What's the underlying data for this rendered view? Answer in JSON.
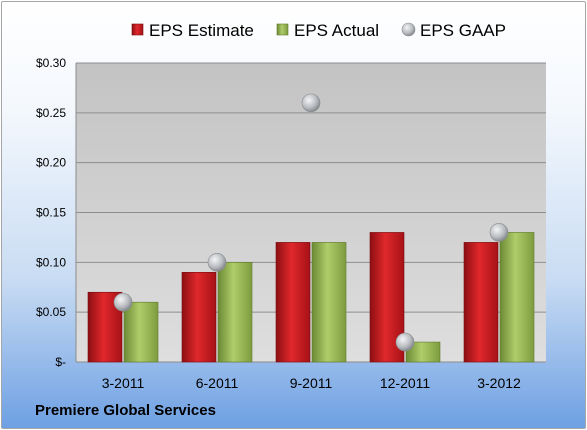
{
  "chart_data": {
    "type": "bar",
    "categories": [
      "3-2011",
      "6-2011",
      "9-2011",
      "12-2011",
      "3-2012"
    ],
    "series": [
      {
        "name": "EPS Estimate",
        "values": [
          0.07,
          0.09,
          0.12,
          0.13,
          0.12
        ],
        "color": "#c0171b",
        "mark": "bar"
      },
      {
        "name": "EPS Actual",
        "values": [
          0.06,
          0.1,
          0.12,
          0.02,
          0.13
        ],
        "color": "#8dac4a",
        "mark": "bar"
      },
      {
        "name": "EPS GAAP",
        "values": [
          0.06,
          0.1,
          0.26,
          0.02,
          0.13
        ],
        "color": "#b9bcc0",
        "mark": "scatter"
      }
    ],
    "ylim": [
      0,
      0.3
    ],
    "yticks": [
      {
        "value": 0,
        "label": "$-"
      },
      {
        "value": 0.05,
        "label": "$0.05"
      },
      {
        "value": 0.1,
        "label": "$0.10"
      },
      {
        "value": 0.15,
        "label": "$0.15"
      },
      {
        "value": 0.2,
        "label": "$0.20"
      },
      {
        "value": 0.25,
        "label": "$0.25"
      },
      {
        "value": 0.3,
        "label": "$0.30"
      }
    ],
    "grid": true,
    "legend": "top",
    "footer": "Premiere Global Services"
  }
}
